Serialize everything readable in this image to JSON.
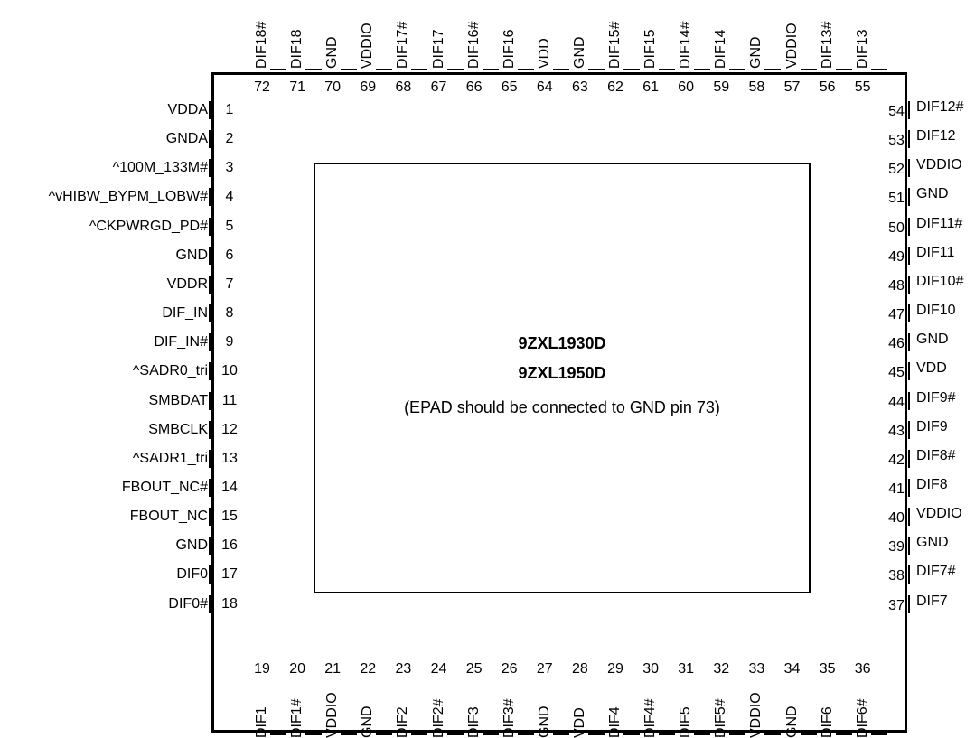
{
  "epad": {
    "title1": "9ZXL1930D",
    "title2": "9ZXL1950D",
    "note": "(EPAD should be connected to GND pin 73)"
  },
  "pins": {
    "left": [
      {
        "num": "1",
        "name": "VDDA"
      },
      {
        "num": "2",
        "name": "GNDA"
      },
      {
        "num": "3",
        "name": "^100M_133M#"
      },
      {
        "num": "4",
        "name": "^vHIBW_BYPM_LOBW#"
      },
      {
        "num": "5",
        "name": "^CKPWRGD_PD#"
      },
      {
        "num": "6",
        "name": "GND"
      },
      {
        "num": "7",
        "name": "VDDR"
      },
      {
        "num": "8",
        "name": "DIF_IN"
      },
      {
        "num": "9",
        "name": "DIF_IN#"
      },
      {
        "num": "10",
        "name": "^SADR0_tri"
      },
      {
        "num": "11",
        "name": "SMBDAT"
      },
      {
        "num": "12",
        "name": "SMBCLK"
      },
      {
        "num": "13",
        "name": "^SADR1_tri"
      },
      {
        "num": "14",
        "name": "FBOUT_NC#"
      },
      {
        "num": "15",
        "name": "FBOUT_NC"
      },
      {
        "num": "16",
        "name": "GND"
      },
      {
        "num": "17",
        "name": "DIF0"
      },
      {
        "num": "18",
        "name": "DIF0#"
      }
    ],
    "bottom": [
      {
        "num": "19",
        "name": "DIF1"
      },
      {
        "num": "20",
        "name": "DIF1#"
      },
      {
        "num": "21",
        "name": "VDDIO"
      },
      {
        "num": "22",
        "name": "GND"
      },
      {
        "num": "23",
        "name": "DIF2"
      },
      {
        "num": "24",
        "name": "DIF2#"
      },
      {
        "num": "25",
        "name": "DIF3"
      },
      {
        "num": "26",
        "name": "DIF3#"
      },
      {
        "num": "27",
        "name": "GND"
      },
      {
        "num": "28",
        "name": "VDD"
      },
      {
        "num": "29",
        "name": "DIF4"
      },
      {
        "num": "30",
        "name": "DIF4#"
      },
      {
        "num": "31",
        "name": "DIF5"
      },
      {
        "num": "32",
        "name": "DIF5#"
      },
      {
        "num": "33",
        "name": "VDDIO"
      },
      {
        "num": "34",
        "name": "GND"
      },
      {
        "num": "35",
        "name": "DIF6"
      },
      {
        "num": "36",
        "name": "DIF6#"
      }
    ],
    "right": [
      {
        "num": "37",
        "name": "DIF7"
      },
      {
        "num": "38",
        "name": "DIF7#"
      },
      {
        "num": "39",
        "name": "GND"
      },
      {
        "num": "40",
        "name": "VDDIO"
      },
      {
        "num": "41",
        "name": "DIF8"
      },
      {
        "num": "42",
        "name": "DIF8#"
      },
      {
        "num": "43",
        "name": "DIF9"
      },
      {
        "num": "44",
        "name": "DIF9#"
      },
      {
        "num": "45",
        "name": "VDD"
      },
      {
        "num": "46",
        "name": "GND"
      },
      {
        "num": "47",
        "name": "DIF10"
      },
      {
        "num": "48",
        "name": "DIF10#"
      },
      {
        "num": "49",
        "name": "DIF11"
      },
      {
        "num": "50",
        "name": "DIF11#"
      },
      {
        "num": "51",
        "name": "GND"
      },
      {
        "num": "52",
        "name": "VDDIO"
      },
      {
        "num": "53",
        "name": "DIF12"
      },
      {
        "num": "54",
        "name": "DIF12#"
      }
    ],
    "top": [
      {
        "num": "72",
        "name": "DIF18#"
      },
      {
        "num": "71",
        "name": "DIF18"
      },
      {
        "num": "70",
        "name": "GND"
      },
      {
        "num": "69",
        "name": "VDDIO"
      },
      {
        "num": "68",
        "name": "DIF17#"
      },
      {
        "num": "67",
        "name": "DIF17"
      },
      {
        "num": "66",
        "name": "DIF16#"
      },
      {
        "num": "65",
        "name": "DIF16"
      },
      {
        "num": "64",
        "name": "VDD"
      },
      {
        "num": "63",
        "name": "GND"
      },
      {
        "num": "62",
        "name": "DIF15#"
      },
      {
        "num": "61",
        "name": "DIF15"
      },
      {
        "num": "60",
        "name": "DIF14#"
      },
      {
        "num": "59",
        "name": "DIF14"
      },
      {
        "num": "58",
        "name": "GND"
      },
      {
        "num": "57",
        "name": "VDDIO"
      },
      {
        "num": "56",
        "name": "DIF13#"
      },
      {
        "num": "55",
        "name": "DIF13"
      }
    ]
  }
}
